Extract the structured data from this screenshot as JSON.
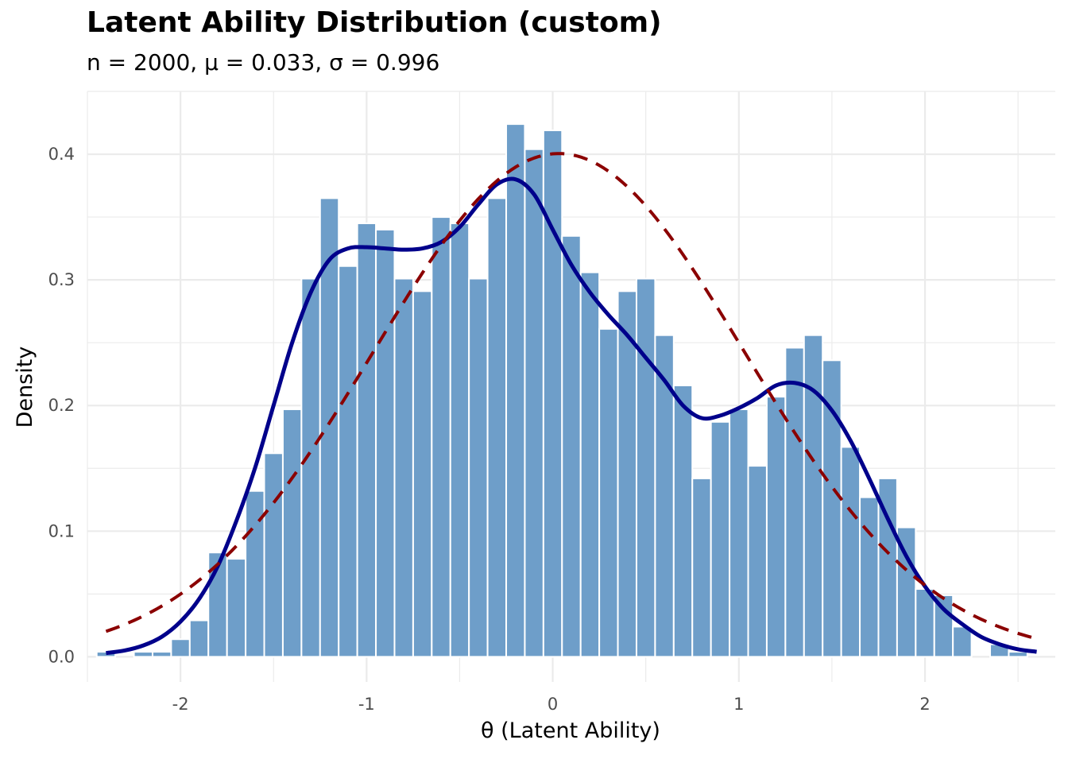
{
  "chart_data": {
    "type": "bar",
    "title": "Latent Ability Distribution (custom)",
    "subtitle": "n = 2000, μ = 0.033, σ = 0.996",
    "xlabel": "θ (Latent Ability)",
    "ylabel": "Density",
    "xlim": [
      -2.5,
      2.7
    ],
    "ylim": [
      -0.02,
      0.45
    ],
    "x_ticks": [
      -2,
      -1,
      0,
      1,
      2
    ],
    "y_ticks": [
      0.0,
      0.1,
      0.2,
      0.3,
      0.4
    ],
    "x_tick_labels": [
      "-2",
      "-1",
      "0",
      "1",
      "2"
    ],
    "y_tick_labels": [
      "0.0",
      "0.1",
      "0.2",
      "0.3",
      "0.4"
    ],
    "grid": true,
    "bins": {
      "start": -2.4,
      "width": 0.1,
      "values": [
        0.004,
        0.0,
        0.004,
        0.004,
        0.014,
        0.029,
        0.083,
        0.078,
        0.132,
        0.162,
        0.197,
        0.301,
        0.365,
        0.311,
        0.345,
        0.34,
        0.301,
        0.291,
        0.35,
        0.345,
        0.301,
        0.365,
        0.424,
        0.404,
        0.419,
        0.335,
        0.306,
        0.261,
        0.291,
        0.301,
        0.256,
        0.216,
        0.142,
        0.187,
        0.197,
        0.152,
        0.207,
        0.246,
        0.256,
        0.236,
        0.167,
        0.127,
        0.142,
        0.103,
        0.054,
        0.049,
        0.024,
        0.0,
        0.01,
        0.004
      ]
    },
    "series": [
      {
        "kind": "kde",
        "color": "#00008b",
        "x": [
          -2.4,
          -2.3,
          -2.2,
          -2.1,
          -2.0,
          -1.9,
          -1.8,
          -1.7,
          -1.6,
          -1.5,
          -1.4,
          -1.3,
          -1.2,
          -1.1,
          -1.0,
          -0.9,
          -0.8,
          -0.7,
          -0.6,
          -0.5,
          -0.4,
          -0.3,
          -0.2,
          -0.1,
          0.0,
          0.1,
          0.2,
          0.3,
          0.4,
          0.5,
          0.6,
          0.7,
          0.8,
          0.9,
          1.0,
          1.1,
          1.2,
          1.3,
          1.4,
          1.5,
          1.6,
          1.7,
          1.8,
          1.9,
          2.0,
          2.1,
          2.2,
          2.3,
          2.4,
          2.5,
          2.6
        ],
        "y": [
          0.003,
          0.005,
          0.009,
          0.016,
          0.028,
          0.046,
          0.072,
          0.108,
          0.15,
          0.2,
          0.25,
          0.29,
          0.316,
          0.325,
          0.326,
          0.325,
          0.324,
          0.325,
          0.33,
          0.342,
          0.36,
          0.376,
          0.38,
          0.368,
          0.34,
          0.312,
          0.29,
          0.272,
          0.256,
          0.238,
          0.22,
          0.2,
          0.19,
          0.192,
          0.198,
          0.206,
          0.216,
          0.218,
          0.212,
          0.196,
          0.172,
          0.142,
          0.11,
          0.08,
          0.056,
          0.038,
          0.026,
          0.016,
          0.01,
          0.006,
          0.004
        ]
      },
      {
        "kind": "normal",
        "color": "#8b0000",
        "mean": 0.033,
        "sd": 0.996,
        "x_range": [
          -2.4,
          2.6
        ]
      }
    ],
    "bar_color": "#6e9ec9"
  }
}
